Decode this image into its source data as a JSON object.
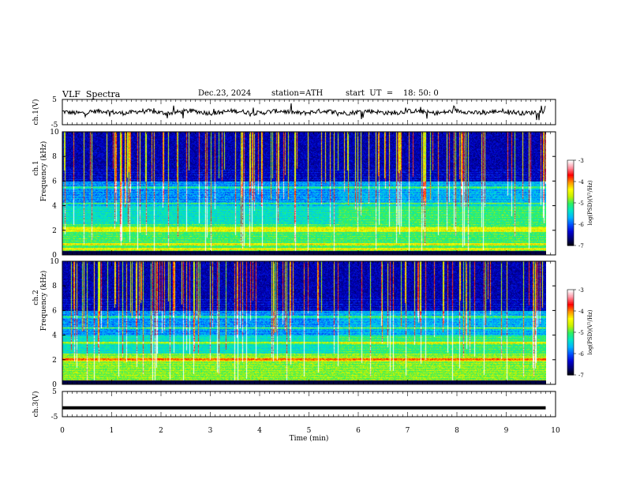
{
  "header": {
    "title": "VLF  Spectra",
    "date": "Dec.23, 2024",
    "station": "station=ATH",
    "start": "start  UT  =    18: 50: 0"
  },
  "chart_data": {
    "type": "heatmap",
    "x_axis": {
      "label": "Time  (min)",
      "range": [
        0,
        10
      ],
      "ticks": [
        "0",
        "1",
        "2",
        "3",
        "4",
        "5",
        "6",
        "7",
        "8",
        "9",
        "10"
      ]
    },
    "panels": [
      {
        "name": "ch1_waveform",
        "type": "line",
        "ylabel": "ch.1(V)",
        "ylim": [
          -5,
          5
        ],
        "yticks": [
          "5",
          "-5"
        ],
        "data_end_min": 9.8
      },
      {
        "name": "ch1_spectrogram",
        "type": "heatmap",
        "ylabel_top": "ch.1",
        "ylabel": "Frequency  (kHz)",
        "ylim": [
          0,
          10
        ],
        "yticks": [
          "0",
          "2",
          "4",
          "6",
          "8",
          "10"
        ],
        "bands_khz": [
          0.5,
          0.9,
          2.0,
          2.2,
          4.2,
          5.5
        ],
        "colorbar": {
          "label": "log(PSD)(V²/Hz)",
          "range": [
            -7,
            -3
          ],
          "ticks": [
            "-3",
            "-4",
            "-5",
            "-6",
            "-7"
          ]
        }
      },
      {
        "name": "ch2_spectrogram",
        "type": "heatmap",
        "ylabel_top": "ch.2",
        "ylabel": "Frequency  (kHz)",
        "ylim": [
          0,
          10
        ],
        "yticks": [
          "0",
          "2",
          "4",
          "6",
          "8",
          "10"
        ],
        "bands_khz": [
          2.0,
          2.1,
          3.4,
          4.6,
          5.5
        ],
        "colorbar": {
          "label": "log(PSD)(V²/Hz)",
          "range": [
            -7,
            -3
          ],
          "ticks": [
            "-3",
            "-4",
            "-5",
            "-6",
            "-7"
          ]
        }
      },
      {
        "name": "ch3_waveform",
        "type": "line",
        "ylabel": "ch.3(V)",
        "ylim": [
          -5,
          5
        ],
        "yticks": [
          "5",
          "-5"
        ],
        "constant_value": -1.5,
        "data_end_min": 9.8
      }
    ],
    "colormap": [
      "#000000",
      "#000070",
      "#0000d0",
      "#0050ff",
      "#00b4ff",
      "#00e6c8",
      "#30f060",
      "#c8f000",
      "#ffff00",
      "#ff9000",
      "#ff0000",
      "#ff90a0",
      "#ffffff"
    ]
  }
}
